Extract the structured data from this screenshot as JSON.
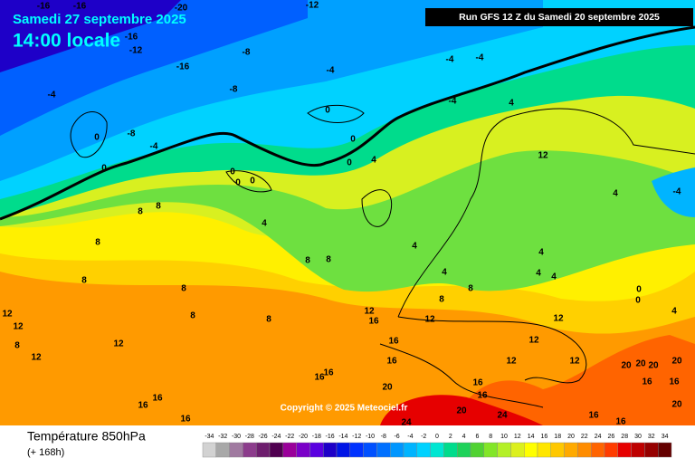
{
  "header": {
    "date": "Samedi 27 septembre 2025",
    "time": "14:00 locale",
    "run": "Run GFS 12 Z du Samedi 20 septembre 2025"
  },
  "copyright": "Copyright © 2025 Meteociel.fr",
  "legend": {
    "title": "Température 850hPa",
    "subtitle": "(+ 168h)",
    "scale": [
      -34,
      -32,
      -30,
      -28,
      -26,
      -24,
      -22,
      -20,
      -18,
      -16,
      -14,
      -12,
      -10,
      -8,
      -6,
      -4,
      -2,
      0,
      2,
      4,
      6,
      8,
      10,
      12,
      14,
      16,
      18,
      20,
      22,
      24,
      26,
      28,
      30,
      32,
      34
    ],
    "colors": [
      "#d2d2d2",
      "#a8a8a8",
      "#a07aa0",
      "#8c3c8c",
      "#6e1e6e",
      "#500050",
      "#9a009a",
      "#7a00c8",
      "#5a00e0",
      "#1e00c8",
      "#0014e6",
      "#0032ff",
      "#0050ff",
      "#0070ff",
      "#0096ff",
      "#00b4ff",
      "#00d2ff",
      "#00e6d2",
      "#00dc8c",
      "#1ed25a",
      "#50d232",
      "#82e628",
      "#b4f028",
      "#dcf01e",
      "#ffff00",
      "#ffe600",
      "#ffc800",
      "#ffaa00",
      "#ff8c00",
      "#ff6400",
      "#ff3c00",
      "#e60000",
      "#be0000",
      "#960000",
      "#640000"
    ]
  },
  "contour_labels": [
    -16,
    -16,
    -20,
    -12,
    -16,
    -12,
    -8,
    -16,
    -8,
    -4,
    -4,
    -4,
    -4,
    -8,
    -4,
    0,
    0,
    -4,
    0,
    0,
    0,
    4,
    4,
    12,
    4,
    -4,
    0,
    0,
    0,
    4,
    8,
    8,
    8,
    8,
    8,
    8,
    8,
    8,
    8,
    4,
    4,
    8,
    8,
    4,
    4,
    4,
    0,
    0,
    4,
    12,
    12,
    8,
    12,
    12,
    12,
    16,
    12,
    12,
    12,
    16,
    16,
    16,
    20,
    16,
    16,
    16,
    24,
    20,
    24,
    16,
    16,
    16,
    20,
    20,
    20,
    20,
    16,
    16,
    20,
    16,
    16,
    12,
    12
  ]
}
